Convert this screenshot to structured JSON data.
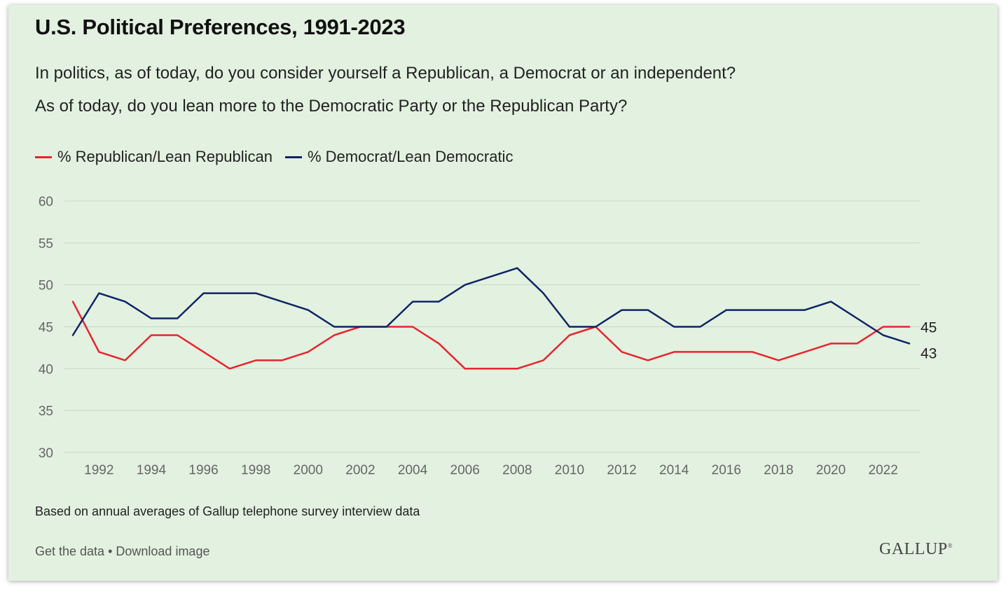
{
  "title": "U.S. Political Preferences, 1991-2023",
  "question_line1": "In politics, as of today, do you consider yourself a Republican, a Democrat or an independent?",
  "question_line2": "As of today, do you lean more to the Democratic Party or the Republican Party?",
  "footnote": "Based on annual averages of Gallup telephone survey interview data",
  "links": {
    "get_data": "Get the data",
    "separator": " • ",
    "download": "Download image"
  },
  "logo_text": "GALLUP",
  "chart_data": {
    "type": "line",
    "x": [
      1991,
      1992,
      1993,
      1994,
      1995,
      1996,
      1997,
      1998,
      1999,
      2000,
      2001,
      2002,
      2003,
      2004,
      2005,
      2006,
      2007,
      2008,
      2009,
      2010,
      2011,
      2012,
      2013,
      2014,
      2015,
      2016,
      2017,
      2018,
      2019,
      2020,
      2021,
      2022,
      2023
    ],
    "x_tick_labels": [
      "1992",
      "1994",
      "1996",
      "1998",
      "2000",
      "2002",
      "2004",
      "2006",
      "2008",
      "2010",
      "2012",
      "2014",
      "2016",
      "2018",
      "2020",
      "2022"
    ],
    "y_tick_labels": [
      "30",
      "35",
      "40",
      "45",
      "50",
      "55",
      "60"
    ],
    "ylim": [
      30,
      60
    ],
    "grid": true,
    "legend_position": "top-left",
    "series": [
      {
        "name": "% Republican/Lean Republican",
        "color": "#e8242f",
        "end_label": "45",
        "values": [
          48,
          42,
          41,
          44,
          44,
          42,
          40,
          41,
          41,
          42,
          44,
          45,
          45,
          45,
          43,
          40,
          40,
          40,
          41,
          44,
          45,
          42,
          41,
          42,
          42,
          42,
          42,
          41,
          42,
          43,
          43,
          45,
          45
        ]
      },
      {
        "name": "% Democrat/Lean Democratic",
        "color": "#0d2466",
        "end_label": "43",
        "values": [
          44,
          49,
          48,
          46,
          46,
          49,
          49,
          49,
          48,
          47,
          45,
          45,
          45,
          48,
          48,
          50,
          51,
          52,
          49,
          45,
          45,
          47,
          47,
          45,
          45,
          47,
          47,
          47,
          47,
          48,
          46,
          44,
          43
        ]
      }
    ]
  }
}
